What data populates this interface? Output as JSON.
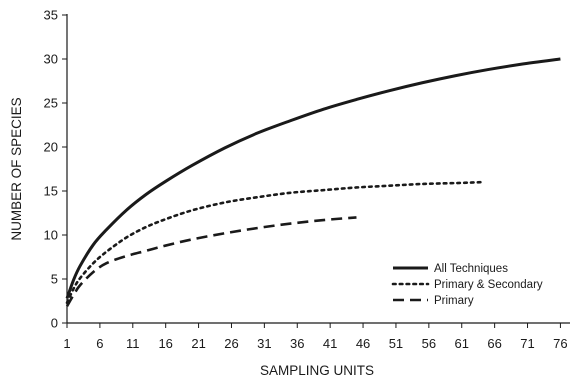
{
  "chart_data": {
    "type": "line",
    "title": "",
    "xlabel": "SAMPLING UNITS",
    "ylabel": "NUMBER OF SPECIES",
    "xlim": [
      1,
      77
    ],
    "ylim": [
      0,
      35
    ],
    "xticks": [
      1,
      6,
      11,
      16,
      21,
      26,
      31,
      36,
      41,
      46,
      51,
      56,
      61,
      66,
      71,
      76
    ],
    "yticks": [
      0,
      5,
      10,
      15,
      20,
      25,
      30,
      35
    ],
    "grid": false,
    "legend_position": "bottom-right",
    "series": [
      {
        "name": "All Techniques",
        "style": "solid",
        "color": "#1a1a1a",
        "x": [
          1,
          2,
          3,
          5,
          7,
          10,
          13,
          16,
          20,
          25,
          30,
          35,
          40,
          45,
          50,
          55,
          60,
          65,
          70,
          76
        ],
        "y": [
          2.8,
          4.9,
          6.5,
          8.9,
          10.6,
          12.8,
          14.6,
          16.1,
          17.9,
          19.9,
          21.6,
          23.0,
          24.3,
          25.4,
          26.4,
          27.3,
          28.1,
          28.8,
          29.4,
          30.0
        ]
      },
      {
        "name": "Primary & Secondary",
        "style": "dotted",
        "color": "#1a1a1a",
        "x": [
          1,
          2,
          3,
          5,
          7,
          10,
          13,
          16,
          20,
          25,
          30,
          35,
          40,
          45,
          50,
          55,
          60,
          64
        ],
        "y": [
          2.3,
          3.9,
          5.1,
          6.8,
          8.1,
          9.7,
          10.9,
          11.8,
          12.8,
          13.7,
          14.3,
          14.8,
          15.1,
          15.4,
          15.6,
          15.8,
          15.9,
          16.0
        ]
      },
      {
        "name": "Primary",
        "style": "dashed",
        "color": "#1a1a1a",
        "x": [
          1,
          2,
          3,
          5,
          7,
          10,
          13,
          16,
          20,
          25,
          30,
          35,
          40,
          45
        ],
        "y": [
          1.9,
          3.2,
          4.3,
          5.8,
          6.8,
          7.6,
          8.2,
          8.8,
          9.5,
          10.2,
          10.8,
          11.3,
          11.7,
          12.0
        ]
      }
    ]
  }
}
